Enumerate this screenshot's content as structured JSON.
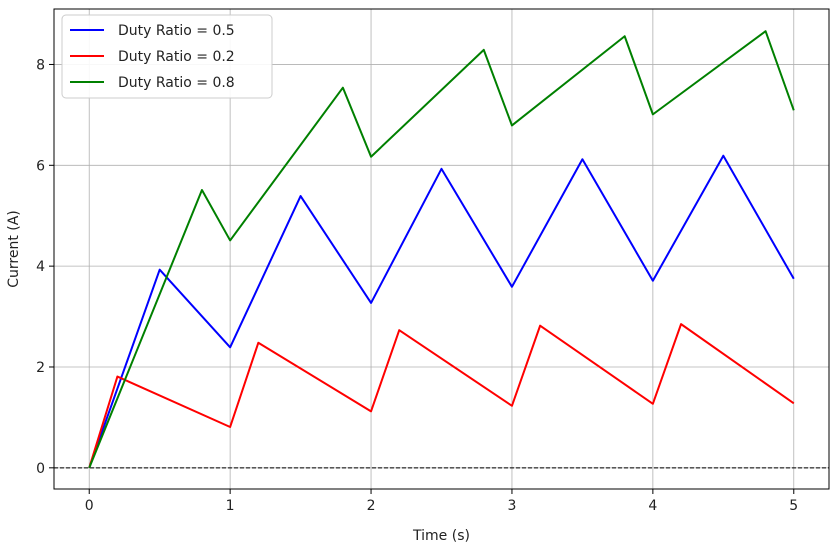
{
  "chart_data": {
    "type": "line",
    "title": "",
    "xlabel": "Time (s)",
    "ylabel": "Current (A)",
    "xlim": [
      -0.25,
      5.25
    ],
    "ylim": [
      -0.42,
      9.1
    ],
    "x_ticks": [
      0,
      1,
      2,
      3,
      4,
      5
    ],
    "y_ticks": [
      0,
      2,
      4,
      6,
      8
    ],
    "grid": true,
    "legend_position": "top-left",
    "reference_line": {
      "y": 0,
      "style": "dashed",
      "color": "#000000"
    },
    "series": [
      {
        "name": "Duty Ratio = 0.5",
        "color": "#0000ff",
        "x": [
          0,
          0.5,
          1.0,
          1.5,
          2.0,
          2.5,
          3.0,
          3.5,
          4.0,
          4.5,
          5.0
        ],
        "y": [
          0,
          3.93,
          2.39,
          5.39,
          3.27,
          5.93,
          3.59,
          6.12,
          3.71,
          6.19,
          3.75
        ]
      },
      {
        "name": "Duty Ratio = 0.2",
        "color": "#ff0000",
        "x": [
          0,
          0.2,
          1.0,
          1.2,
          2.0,
          2.2,
          3.0,
          3.2,
          4.0,
          4.2,
          5.0
        ],
        "y": [
          0,
          1.81,
          0.81,
          2.48,
          1.12,
          2.73,
          1.23,
          2.82,
          1.27,
          2.85,
          1.28
        ]
      },
      {
        "name": "Duty Ratio = 0.8",
        "color": "#008000",
        "x": [
          0,
          0.8,
          1.0,
          1.8,
          2.0,
          2.8,
          3.0,
          3.8,
          4.0,
          4.8,
          5.0
        ],
        "y": [
          0,
          5.51,
          4.51,
          7.54,
          6.17,
          8.29,
          6.79,
          8.56,
          7.01,
          8.66,
          7.09
        ]
      }
    ]
  }
}
